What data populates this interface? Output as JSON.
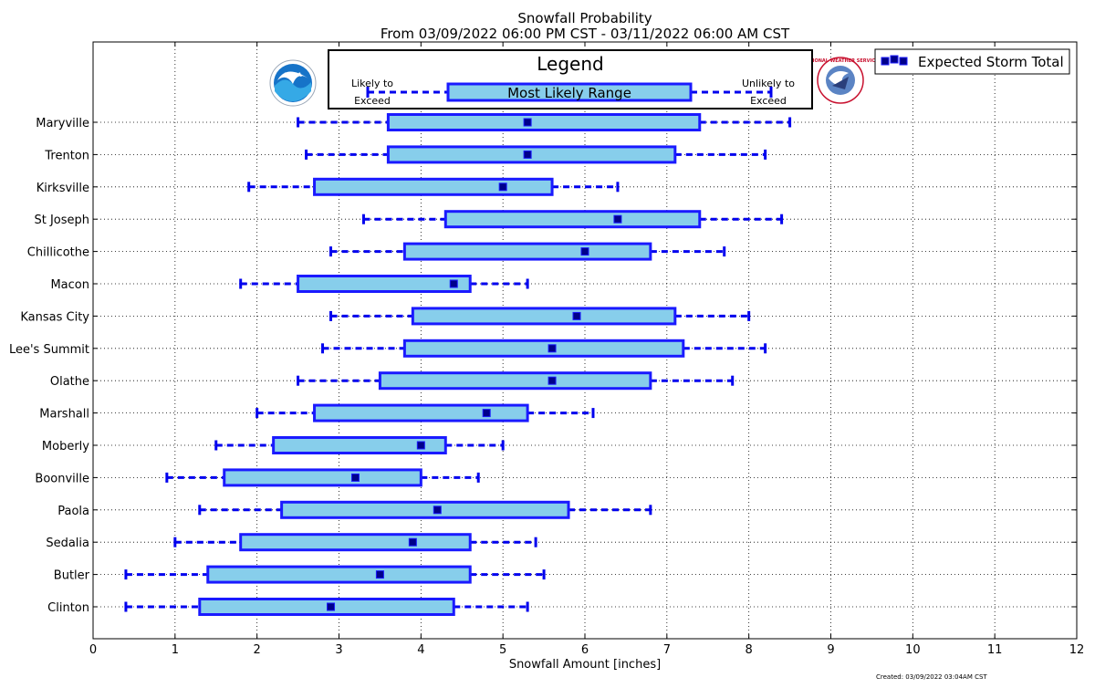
{
  "chart_data": {
    "type": "boxplot",
    "title": "Snowfall Probability",
    "subtitle": "From 03/09/2022 06:00 PM CST - 03/11/2022 06:00 AM CST",
    "xlabel": "Snowfall Amount [inches]",
    "ylabel": "",
    "xlim": [
      0,
      12
    ],
    "x_ticks": [
      "0",
      "1",
      "2",
      "3",
      "4",
      "5",
      "6",
      "7",
      "8",
      "9",
      "10",
      "11",
      "12"
    ],
    "grid": true,
    "legend": {
      "title": "Legend",
      "box_label": "Most Likely Range",
      "low_label_1": "Likely to",
      "low_label_2": "Exceed",
      "high_label_1": "Unlikely to",
      "high_label_2": "Exceed",
      "marker_label": "Expected Storm Total"
    },
    "footer": "Created: 03/09/2022 03:04AM CST",
    "series": [
      {
        "name": "Maryville",
        "low": 2.5,
        "q1": 3.6,
        "expected": 5.3,
        "q3": 7.4,
        "high": 8.5
      },
      {
        "name": "Trenton",
        "low": 2.6,
        "q1": 3.6,
        "expected": 5.3,
        "q3": 7.1,
        "high": 8.2
      },
      {
        "name": "Kirksville",
        "low": 1.9,
        "q1": 2.7,
        "expected": 5.0,
        "q3": 5.6,
        "high": 6.4
      },
      {
        "name": "St Joseph",
        "low": 3.3,
        "q1": 4.3,
        "expected": 6.4,
        "q3": 7.4,
        "high": 8.4
      },
      {
        "name": "Chillicothe",
        "low": 2.9,
        "q1": 3.8,
        "expected": 6.0,
        "q3": 6.8,
        "high": 7.7
      },
      {
        "name": "Macon",
        "low": 1.8,
        "q1": 2.5,
        "expected": 4.4,
        "q3": 4.6,
        "high": 5.3
      },
      {
        "name": "Kansas City",
        "low": 2.9,
        "q1": 3.9,
        "expected": 5.9,
        "q3": 7.1,
        "high": 8.0
      },
      {
        "name": "Lee's Summit",
        "low": 2.8,
        "q1": 3.8,
        "expected": 5.6,
        "q3": 7.2,
        "high": 8.2
      },
      {
        "name": "Olathe",
        "low": 2.5,
        "q1": 3.5,
        "expected": 5.6,
        "q3": 6.8,
        "high": 7.8
      },
      {
        "name": "Marshall",
        "low": 2.0,
        "q1": 2.7,
        "expected": 4.8,
        "q3": 5.3,
        "high": 6.1
      },
      {
        "name": "Moberly",
        "low": 1.5,
        "q1": 2.2,
        "expected": 4.0,
        "q3": 4.3,
        "high": 5.0
      },
      {
        "name": "Boonville",
        "low": 0.9,
        "q1": 1.6,
        "expected": 3.2,
        "q3": 4.0,
        "high": 4.7
      },
      {
        "name": "Paola",
        "low": 1.3,
        "q1": 2.3,
        "expected": 4.2,
        "q3": 5.8,
        "high": 6.8
      },
      {
        "name": "Sedalia",
        "low": 1.0,
        "q1": 1.8,
        "expected": 3.9,
        "q3": 4.6,
        "high": 5.4
      },
      {
        "name": "Butler",
        "low": 0.4,
        "q1": 1.4,
        "expected": 3.5,
        "q3": 4.6,
        "high": 5.5
      },
      {
        "name": "Clinton",
        "low": 0.4,
        "q1": 1.3,
        "expected": 2.9,
        "q3": 4.4,
        "high": 5.3
      }
    ],
    "colors": {
      "box_fill": "#87ceeb",
      "box_edge": "#1a1aff",
      "whisker": "#0000ee",
      "marker": "#00008b"
    }
  },
  "logos": {
    "left": {
      "name": "NOAA",
      "text": "NOAA"
    },
    "right": {
      "name": "National Weather Service",
      "text": "NATIONAL WEATHER SERVICE"
    }
  }
}
